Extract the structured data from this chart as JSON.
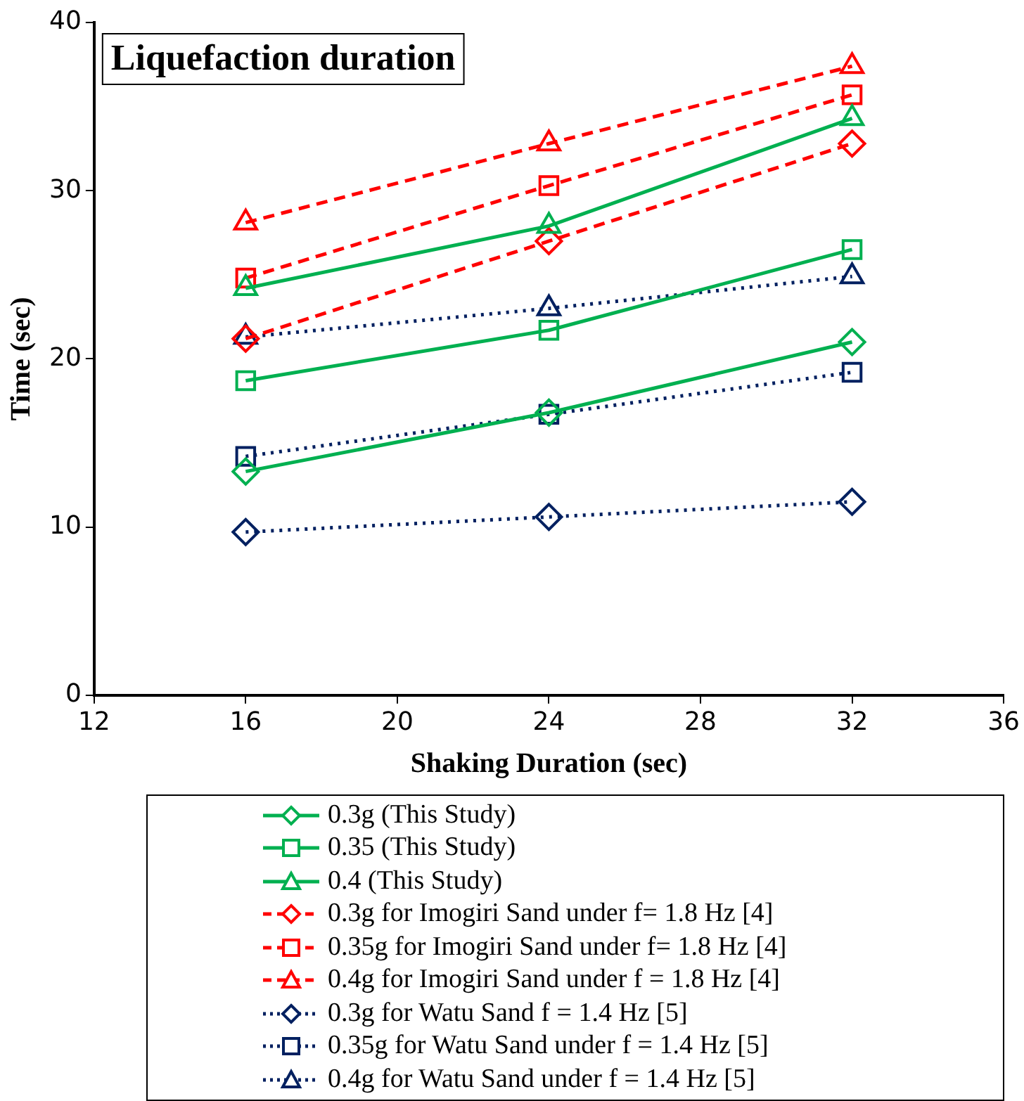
{
  "chart_data": {
    "type": "line",
    "title": "Liquefaction duration",
    "xlabel": "Shaking Duration (sec)",
    "ylabel": "Time (sec)",
    "x": [
      16,
      24,
      32
    ],
    "xlim": [
      12,
      36
    ],
    "xticks": [
      12,
      16,
      20,
      24,
      28,
      32,
      36
    ],
    "ylim": [
      0,
      40
    ],
    "yticks": [
      0,
      10,
      20,
      30,
      40
    ],
    "grid": false,
    "legend": "bottom",
    "series": [
      {
        "name": "0.3g (This Study)",
        "color": "#00b050",
        "values": [
          13.3,
          16.8,
          21.0
        ],
        "marker": "diamond",
        "line_style": "solid"
      },
      {
        "name": "0.35 (This Study)",
        "color": "#00b050",
        "values": [
          18.7,
          21.7,
          26.5
        ],
        "marker": "square",
        "line_style": "solid"
      },
      {
        "name": "0.4 (This Study)",
        "color": "#00b050",
        "values": [
          24.2,
          27.9,
          34.3
        ],
        "marker": "triangle",
        "line_style": "solid"
      },
      {
        "name": "0.3g for Imogiri Sand under f= 1.8 Hz [4]",
        "color": "#ff0000",
        "values": [
          21.2,
          27.0,
          32.8
        ],
        "marker": "diamond",
        "line_style": "dashed"
      },
      {
        "name": "0.35g for Imogiri Sand under f= 1.8 Hz [4]",
        "color": "#ff0000",
        "values": [
          24.8,
          30.3,
          35.7
        ],
        "marker": "square",
        "line_style": "dashed"
      },
      {
        "name": "0.4g for Imogiri Sand under f = 1.8 Hz [4]",
        "color": "#ff0000",
        "values": [
          28.1,
          32.8,
          37.4
        ],
        "marker": "triangle",
        "line_style": "dashed"
      },
      {
        "name": "0.3g for Watu Sand f = 1.4 Hz [5]",
        "color": "#002060",
        "values": [
          9.7,
          10.6,
          11.5
        ],
        "marker": "diamond",
        "line_style": "dotted"
      },
      {
        "name": "0.35g for Watu Sand under f = 1.4 Hz [5]",
        "color": "#002060",
        "values": [
          14.2,
          16.7,
          19.2
        ],
        "marker": "square",
        "line_style": "dotted"
      },
      {
        "name": "0.4g for Watu Sand under f = 1.4 Hz [5]",
        "color": "#002060",
        "values": [
          21.3,
          23.0,
          24.9
        ],
        "marker": "triangle",
        "line_style": "dotted"
      }
    ]
  }
}
